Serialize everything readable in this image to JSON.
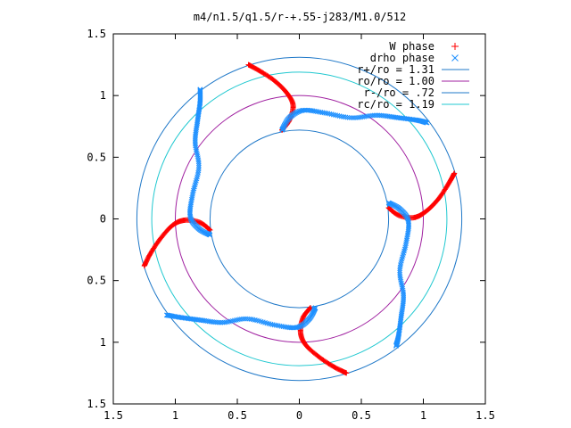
{
  "chart_data": {
    "type": "scatter",
    "title": "m4/n1.5/q1.5/r-+.55-j283/M1.0/512",
    "xlim": [
      -1.5,
      1.5
    ],
    "ylim": [
      -1.5,
      1.5
    ],
    "x_ticks": [
      -1.5,
      -1,
      -0.5,
      0,
      0.5,
      1,
      1.5
    ],
    "x_tick_labels": [
      "1.5",
      "1",
      "0.5",
      "0",
      "0.5",
      "1",
      "1.5"
    ],
    "y_ticks": [
      1.5,
      1,
      0.5,
      0,
      -0.5,
      -1,
      -1.5
    ],
    "y_tick_labels": [
      "1.5",
      "1",
      "0.5",
      "0",
      "0.5",
      "1",
      "1.5"
    ],
    "grid": false,
    "legend_position": "top-right",
    "series": [
      {
        "name": "W phase",
        "kind": "points",
        "marker": "+",
        "color": "#ff0000",
        "arms": [
          {
            "x": [
              -0.41,
              -0.32,
              -0.2,
              -0.1,
              -0.05,
              -0.08,
              -0.14
            ],
            "y": [
              1.25,
              1.2,
              1.12,
              1.02,
              0.92,
              0.8,
              0.72
            ]
          },
          {
            "x": [
              1.25,
              1.2,
              1.12,
              1.02,
              0.92,
              0.8,
              0.72
            ],
            "y": [
              0.37,
              0.28,
              0.16,
              0.06,
              0.01,
              0.03,
              0.09
            ]
          },
          {
            "x": [
              0.38,
              0.28,
              0.16,
              0.05,
              0.01,
              0.03,
              0.09
            ],
            "y": [
              -1.25,
              -1.2,
              -1.12,
              -1.02,
              -0.92,
              -0.8,
              -0.72
            ]
          },
          {
            "x": [
              -1.25,
              -1.2,
              -1.12,
              -1.02,
              -0.92,
              -0.8,
              -0.72
            ],
            "y": [
              -0.38,
              -0.28,
              -0.16,
              -0.05,
              -0.01,
              -0.03,
              -0.09
            ]
          }
        ]
      },
      {
        "name": "drho phase",
        "kind": "points",
        "marker": "x",
        "color": "#1e90ff",
        "arms": [
          {
            "x": [
              -0.14,
              -0.08,
              0.03,
              0.2,
              0.42,
              0.62,
              0.8,
              0.95,
              1.03
            ],
            "y": [
              0.72,
              0.82,
              0.88,
              0.86,
              0.82,
              0.84,
              0.82,
              0.8,
              0.78
            ]
          },
          {
            "x": [
              0.72,
              0.81,
              0.88,
              0.86,
              0.81,
              0.84,
              0.82,
              0.8,
              0.78
            ],
            "y": [
              0.13,
              0.08,
              -0.02,
              -0.2,
              -0.42,
              -0.62,
              -0.8,
              -0.95,
              -1.03
            ]
          },
          {
            "x": [
              0.13,
              0.08,
              -0.02,
              -0.2,
              -0.42,
              -0.62,
              -0.8,
              -0.95,
              -1.07
            ],
            "y": [
              -0.72,
              -0.81,
              -0.88,
              -0.86,
              -0.81,
              -0.84,
              -0.82,
              -0.8,
              -0.78
            ]
          },
          {
            "x": [
              -0.72,
              -0.81,
              -0.88,
              -0.86,
              -0.81,
              -0.84,
              -0.82,
              -0.8,
              -0.8
            ],
            "y": [
              -0.13,
              -0.08,
              0.02,
              0.2,
              0.42,
              0.62,
              0.8,
              0.95,
              1.05
            ]
          }
        ]
      },
      {
        "name": "r+/ro = 1.31",
        "kind": "circle",
        "r": 1.31,
        "color": "#1f78c8"
      },
      {
        "name": "ro/ro = 1.00",
        "kind": "circle",
        "r": 1.0,
        "color": "#a020a0"
      },
      {
        "name": "r-/ro = .72",
        "kind": "circle",
        "r": 0.72,
        "color": "#1f78c8"
      },
      {
        "name": "rc/ro = 1.19",
        "kind": "circle",
        "r": 1.19,
        "color": "#20c8d0"
      }
    ]
  }
}
